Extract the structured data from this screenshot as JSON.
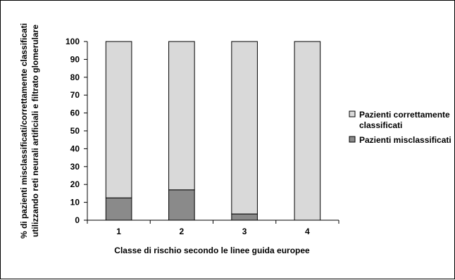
{
  "chart_data": {
    "type": "bar",
    "stacked": true,
    "categories": [
      "1",
      "2",
      "3",
      "4"
    ],
    "series": [
      {
        "name": "Pazienti misclassificati",
        "values": [
          12.5,
          17,
          3.5,
          0
        ],
        "color": "#8a8a8a"
      },
      {
        "name": "Pazienti correttamente classificati",
        "legend_lines": [
          "Pazienti correttamente",
          "classificati"
        ],
        "values": [
          87.5,
          83,
          96.5,
          100
        ],
        "color": "#d9d9d9"
      }
    ],
    "xlabel": "Classe di rischio secondo le linee guida europee",
    "ylabel_lines": [
      "% di pazienti misclassificati/correttamente classificati",
      "utilizzando reti neurali artificiali e filtrato glomerulare"
    ],
    "ylim": [
      0,
      100
    ],
    "yticks": [
      0,
      10,
      20,
      30,
      40,
      50,
      60,
      70,
      80,
      90,
      100
    ],
    "grid": false,
    "legend_position": "right"
  }
}
